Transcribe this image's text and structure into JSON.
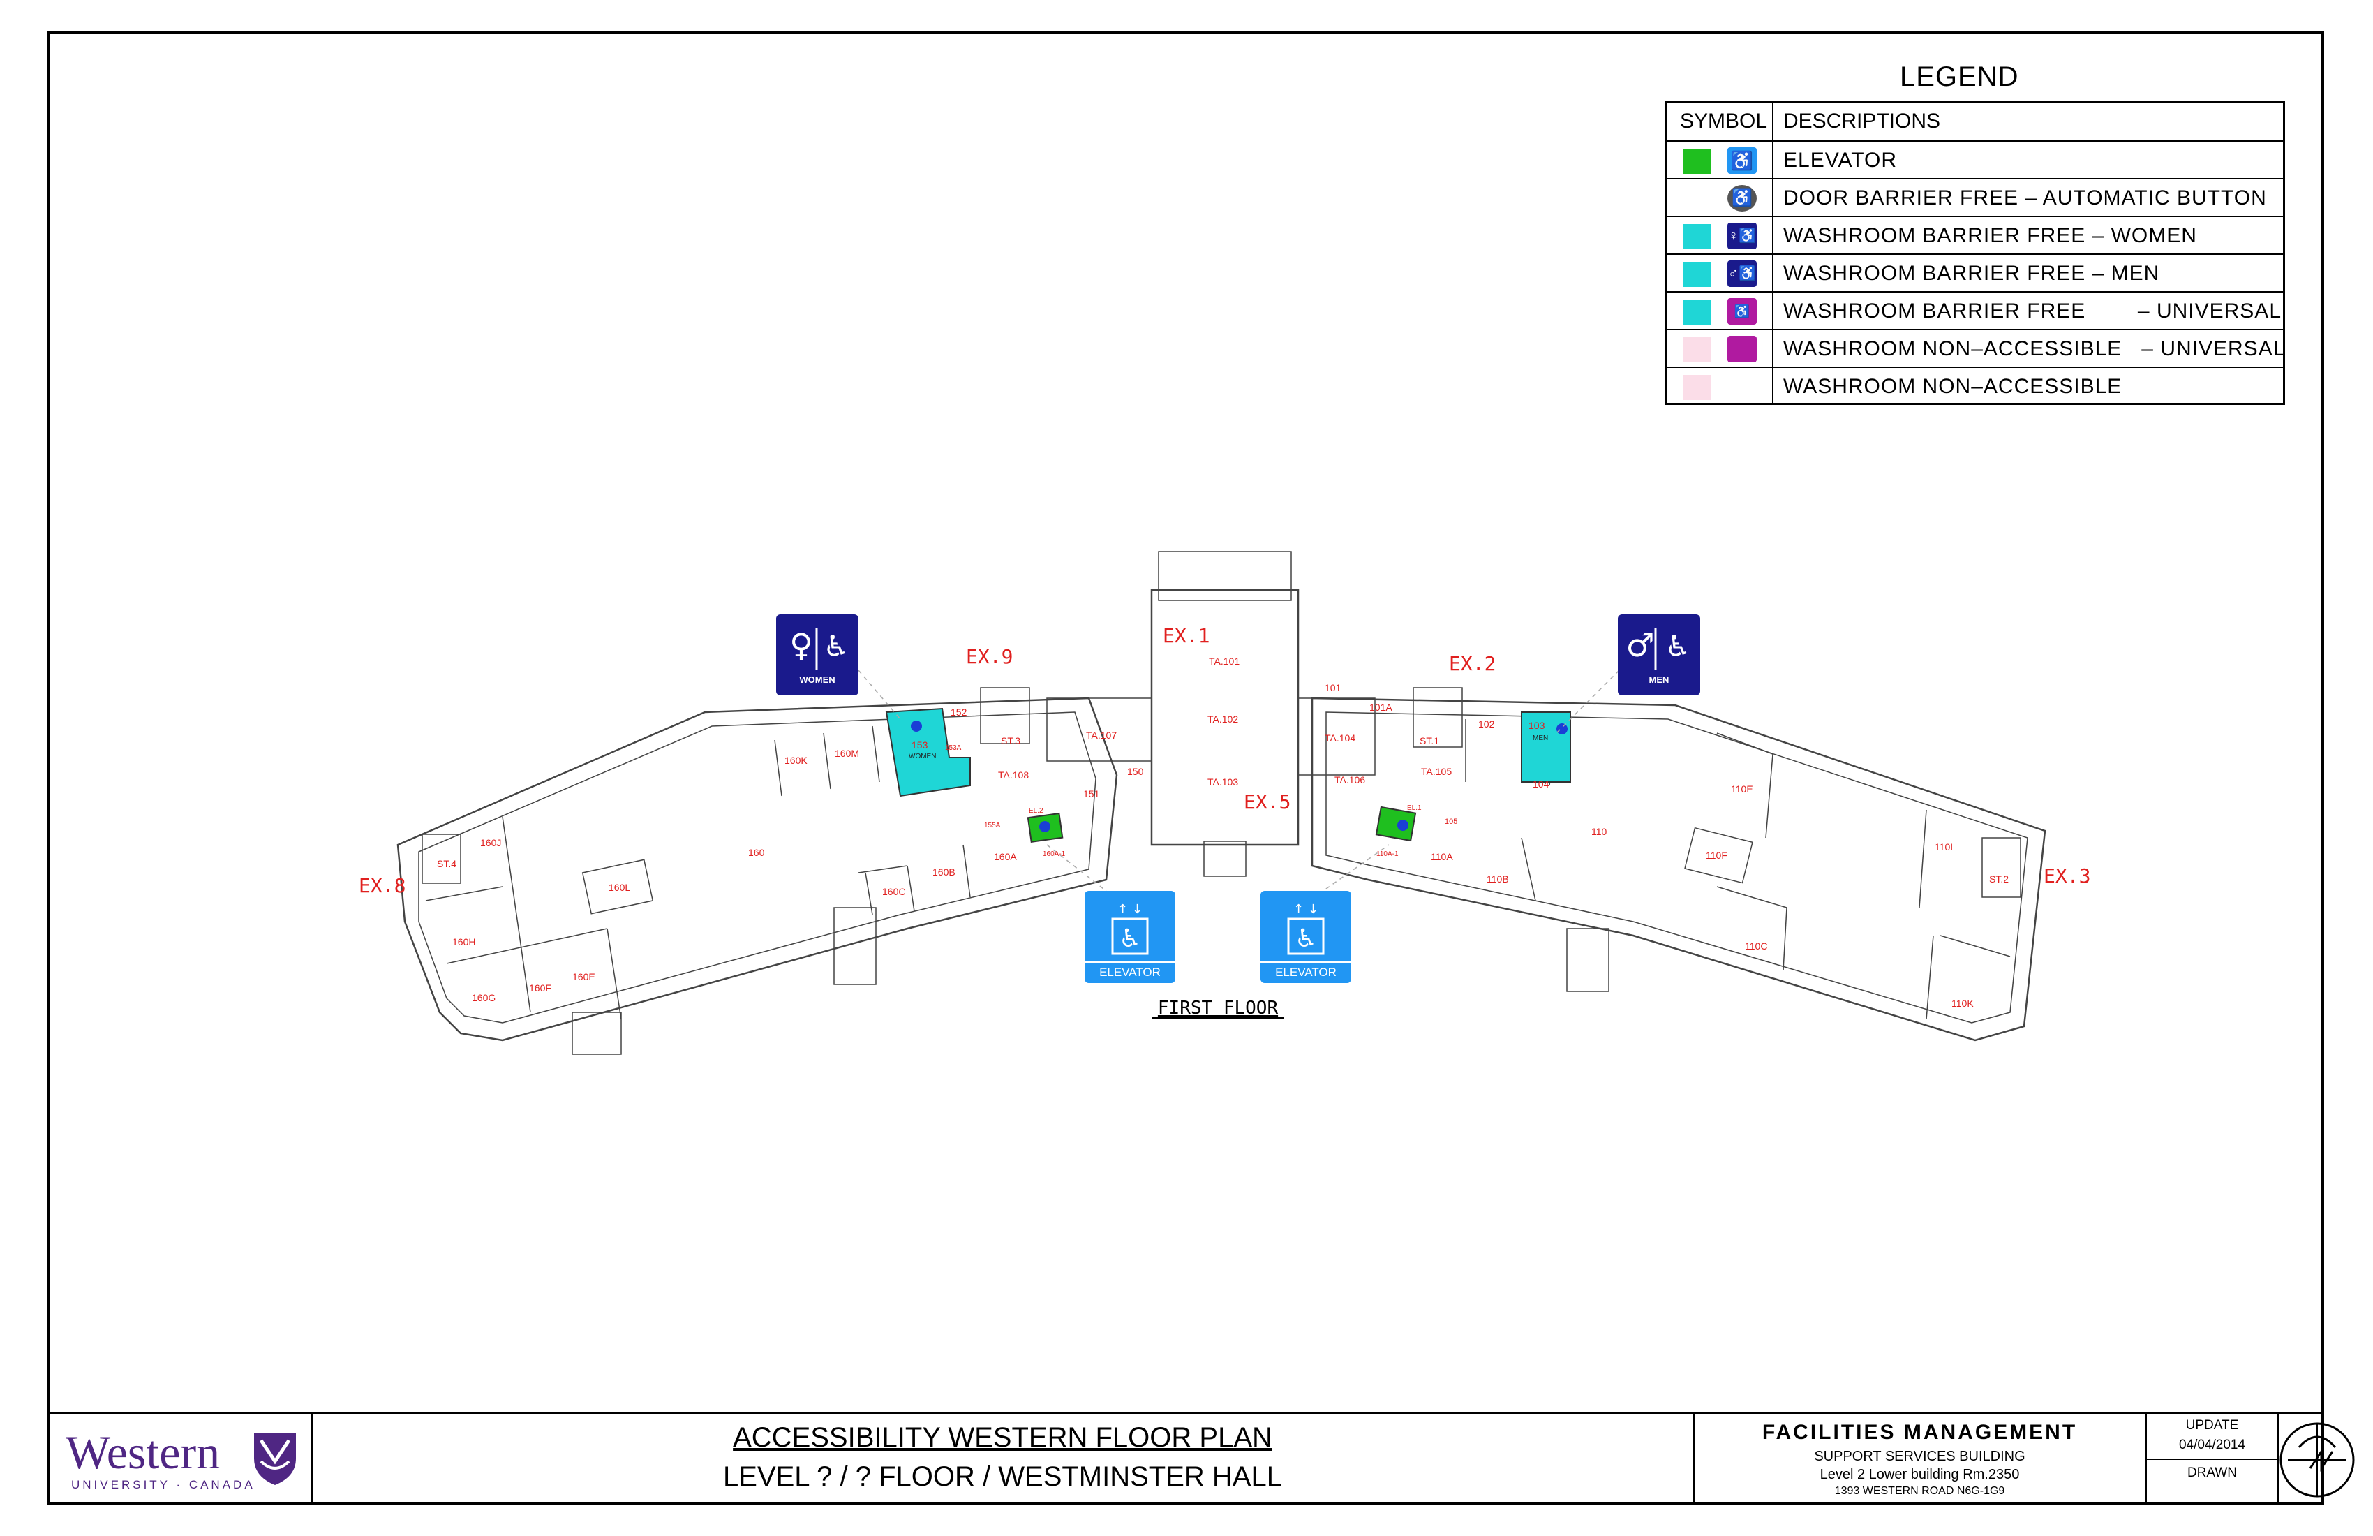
{
  "legend": {
    "title": "LEGEND",
    "col_symbol": "SYMBOL",
    "col_descriptions": "DESCRIPTIONS",
    "rows": [
      {
        "description": "ELEVATOR",
        "swatch": "#1fbf1f",
        "icon": "elevator-icon",
        "icon_color": "#2196f3"
      },
      {
        "description": "DOOR BARRIER FREE – AUTOMATIC BUTTON",
        "swatch": "",
        "icon": "automatic-door-button-icon",
        "icon_color": "#555555"
      },
      {
        "description": "WASHROOM BARRIER FREE – WOMEN",
        "swatch": "#1fd6d6",
        "icon": "women-washroom-icon",
        "icon_color": "#1a1a8c"
      },
      {
        "description": "WASHROOM BARRIER FREE – MEN",
        "swatch": "#1fd6d6",
        "icon": "men-washroom-icon",
        "icon_color": "#1a1a8c"
      },
      {
        "description": "WASHROOM BARRIER FREE        – UNIVERSAL",
        "swatch": "#1fd6d6",
        "icon": "universal-washroom-icon",
        "icon_color": "#b01aa0"
      },
      {
        "description": "WASHROOM NON–ACCESSIBLE   – UNIVERSAL",
        "swatch": "#fbdde8",
        "icon": "universal-washroom-non-accessible-icon",
        "icon_color": "#b01aa0"
      },
      {
        "description": "WASHROOM NON–ACCESSIBLE",
        "swatch": "#fbdde8",
        "icon": "",
        "icon_color": ""
      }
    ]
  },
  "plan": {
    "floor_label": "FIRST FLOOR",
    "exits": [
      "EX.1",
      "EX.2",
      "EX.3",
      "EX.5",
      "EX.8",
      "EX.9"
    ],
    "signs": {
      "women": "WOMEN",
      "men": "MEN",
      "elevator": "ELEVATOR"
    },
    "rooms": [
      "TA.101",
      "TA.102",
      "TA.103",
      "TA.104",
      "TA.105",
      "TA.106",
      "TA.107",
      "TA.108",
      "101",
      "101A",
      "102",
      "103",
      "104",
      "105",
      "110",
      "110A",
      "110B",
      "110C",
      "110E",
      "110F",
      "110K",
      "110L",
      "150",
      "151",
      "152",
      "153",
      "153A",
      "155A",
      "160",
      "160A",
      "160B",
      "160C",
      "160E",
      "160F",
      "160G",
      "160H",
      "160J",
      "160K",
      "160L",
      "160M",
      "ST.1",
      "ST.2",
      "ST.3",
      "ST.4",
      "EL.1",
      "EL.2",
      "160A-1",
      "110A-1"
    ],
    "room_labels_in_washrooms": {
      "w153": "WOMEN",
      "m103": "MEN"
    },
    "colors": {
      "washroom": "#1fd6d6",
      "elevator": "#1fbf1f",
      "door_button": "#1a3fd6",
      "room_text": "#e0201f",
      "sign_blue": "#1a1a8c",
      "sign_elevator": "#2196f3"
    }
  },
  "titleblock": {
    "org": "Western",
    "org_sub": "UNIVERSITY · CANADA",
    "title1": "ACCESSIBILITY WESTERN FLOOR PLAN",
    "title2": "LEVEL ? / ? FLOOR / WESTMINSTER HALL",
    "fm_title": "FACILITIES MANAGEMENT",
    "fm_line1": "SUPPORT SERVICES BUILDING",
    "fm_line2": "Level 2    Lower building    Rm.2350",
    "fm_line3": "1393 WESTERN ROAD     N6G-1G9",
    "update_label": "UPDATE",
    "update_date": "04/04/2014",
    "drawn_label": "DRAWN",
    "brand_color": "#4f2683"
  }
}
